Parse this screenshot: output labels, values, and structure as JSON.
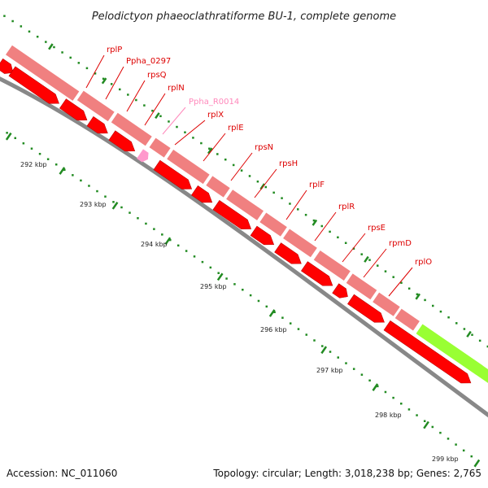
{
  "title": "Pelodictyon phaeoclathratiforme BU-1, complete genome",
  "footer": {
    "accession": "Accession: NC_011060",
    "summary": "Topology: circular; Length: 3,018,238 bp; Genes: 2,765"
  },
  "colors": {
    "cds_outer": "#f08080",
    "cds_inner": "#ff0000",
    "rna": "#ff99cc",
    "highlight": "#99ff33",
    "backbone": "#888888",
    "ticks": "#228b22",
    "label_red": "#dd0000",
    "label_pink": "#ff88bb"
  },
  "kbp_labels": [
    "292 kbp",
    "293 kbp",
    "294 kbp",
    "295 kbp",
    "296 kbp",
    "297 kbp",
    "298 kbp",
    "299 kbp"
  ],
  "gene_labels": [
    {
      "text": "rplP",
      "color": "red"
    },
    {
      "text": "Ppha_0297",
      "color": "red"
    },
    {
      "text": "rpsQ",
      "color": "red"
    },
    {
      "text": "rplN",
      "color": "red"
    },
    {
      "text": "Ppha_R0014",
      "color": "pink"
    },
    {
      "text": "rplX",
      "color": "red"
    },
    {
      "text": "rplE",
      "color": "red"
    },
    {
      "text": "rpsN",
      "color": "red"
    },
    {
      "text": "rpsH",
      "color": "red"
    },
    {
      "text": "rplF",
      "color": "red"
    },
    {
      "text": "rplR",
      "color": "red"
    },
    {
      "text": "rpsE",
      "color": "red"
    },
    {
      "text": "rpmD",
      "color": "red"
    },
    {
      "text": "rplO",
      "color": "red"
    }
  ]
}
